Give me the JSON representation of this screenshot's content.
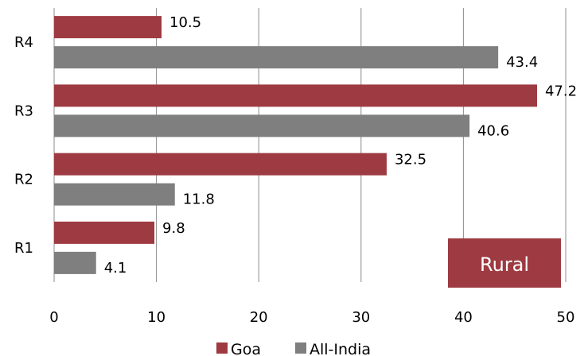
{
  "chart_data": {
    "type": "bar",
    "orientation": "horizontal",
    "categories": [
      "R1",
      "R2",
      "R3",
      "R4"
    ],
    "series": [
      {
        "name": "Goa",
        "values": [
          9.8,
          32.5,
          47.2,
          10.5
        ],
        "color": "#9e3a41"
      },
      {
        "name": "All-India",
        "values": [
          4.1,
          11.8,
          40.6,
          43.4
        ],
        "color": "#7f7f7f"
      }
    ],
    "xlim": [
      0,
      50
    ],
    "xticks": [
      "0",
      "10",
      "20",
      "30",
      "40",
      "50"
    ],
    "value_labels": {
      "Goa": [
        "9.8",
        "32.5",
        "47.2",
        "10.5"
      ],
      "All-India": [
        "4.1",
        "11.8",
        "40.6",
        "43.4"
      ]
    },
    "grid": "vertical",
    "legend_position": "bottom",
    "annotation": "Rural",
    "annotation_color": "#9e3a41",
    "gridline_color": "#8c8c8c"
  }
}
